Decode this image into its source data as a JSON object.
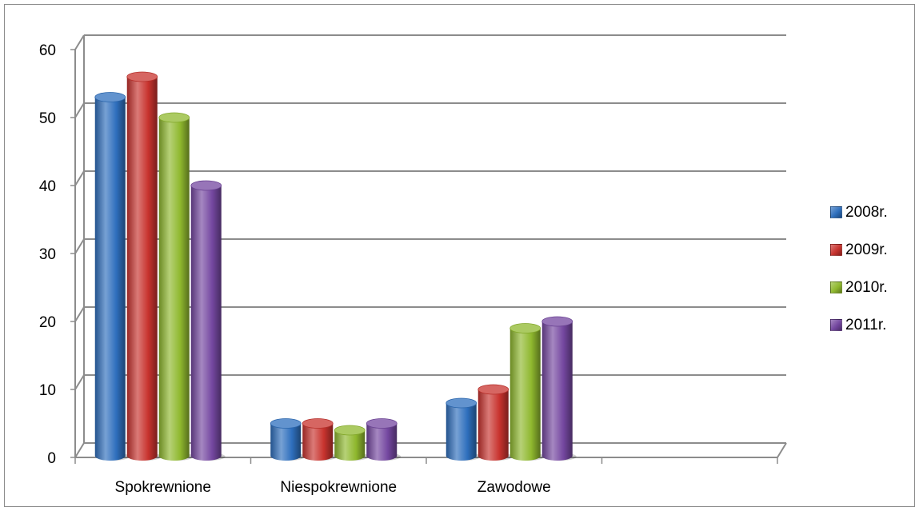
{
  "chart_data": {
    "type": "bar",
    "categories": [
      "Spokrewnione",
      "Niespokrewnione",
      "Zawodowe"
    ],
    "series": [
      {
        "name": "2008r.",
        "values": [
          53,
          5,
          8
        ],
        "color": "#2e6fbd"
      },
      {
        "name": "2009r.",
        "values": [
          56,
          5,
          10
        ],
        "color": "#c8332e"
      },
      {
        "name": "2010r.",
        "values": [
          50,
          4,
          19
        ],
        "color": "#8fb82e"
      },
      {
        "name": "2011r.",
        "values": [
          40,
          5,
          20
        ],
        "color": "#7447a0"
      }
    ],
    "yticks": [
      "0",
      "10",
      "20",
      "30",
      "40",
      "50",
      "60"
    ],
    "ylim": [
      0,
      60
    ],
    "grid": true,
    "legend": "right",
    "style": "3d-cylinder"
  }
}
